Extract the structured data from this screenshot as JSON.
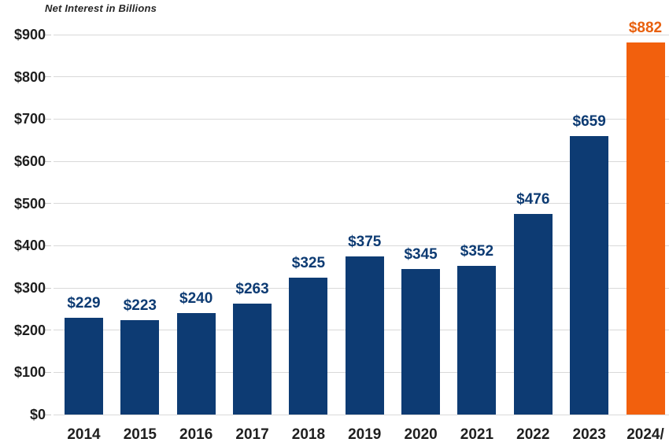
{
  "title": "Net Interest in Billions",
  "colors": {
    "bar_default": "#0d3b73",
    "bar_highlight": "#f2600d",
    "value_label_default": "#0d3b73",
    "value_label_highlight": "#e8600e",
    "gridline": "#d9d9d9",
    "tick": "#c9c9c9",
    "axis_text": "#1f1f1f",
    "title_text": "#262626",
    "background": "#ffffff"
  },
  "chart_data": {
    "type": "bar",
    "title": "Net Interest in Billions",
    "categories": [
      "2014",
      "2015",
      "2016",
      "2017",
      "2018",
      "2019",
      "2020",
      "2021",
      "2022",
      "2023",
      "2024/"
    ],
    "values": [
      229,
      223,
      240,
      263,
      325,
      375,
      345,
      352,
      476,
      659,
      882
    ],
    "data_labels": [
      "$229",
      "$223",
      "$240",
      "$263",
      "$325",
      "$375",
      "$345",
      "$352",
      "$476",
      "$659",
      "$882"
    ],
    "highlight_index": 10,
    "xlabel": "",
    "ylabel": "",
    "ylim": [
      0,
      900
    ],
    "ytick_step": 100,
    "ytick_labels": [
      "$0",
      "$100",
      "$200",
      "$300",
      "$400",
      "$500",
      "$600",
      "$700",
      "$800",
      "$900"
    ],
    "grid": "horizontal",
    "legend": "none"
  }
}
